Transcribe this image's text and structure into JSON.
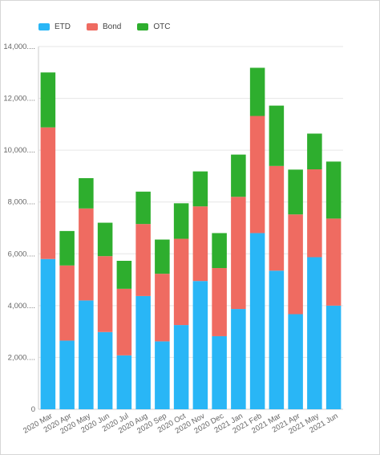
{
  "colors": {
    "ETD": "#29b6f6",
    "Bond": "#ef6b61",
    "OTC": "#2eae2e",
    "grid": "#e6e6e6",
    "axis": "#cccccc"
  },
  "legend": [
    {
      "label": "ETD",
      "color": "#29b6f6"
    },
    {
      "label": "Bond",
      "color": "#ef6b61"
    },
    {
      "label": "OTC",
      "color": "#2eae2e"
    }
  ],
  "chart_data": {
    "type": "bar",
    "stacked": true,
    "categories": [
      "2020 Mar",
      "2020 Apr",
      "2020 May",
      "2020 Jun",
      "2020 Jul",
      "2020 Aug",
      "2020 Sep",
      "2020 Oct",
      "2020 Nov",
      "2020 Dec",
      "2021 Jan",
      "2021 Feb",
      "2021 Mar",
      "2021 Apr",
      "2021 May",
      "2021 Jun"
    ],
    "series": [
      {
        "name": "ETD",
        "values": [
          5800,
          2650,
          4200,
          2980,
          2080,
          4370,
          2620,
          3250,
          4950,
          2820,
          3870,
          6800,
          5350,
          3670,
          5870,
          4000
        ]
      },
      {
        "name": "Bond",
        "values": [
          5080,
          2900,
          3550,
          2930,
          2570,
          2780,
          2610,
          3330,
          2880,
          2630,
          4330,
          4520,
          4040,
          3850,
          3390,
          3360
        ]
      },
      {
        "name": "OTC",
        "values": [
          2120,
          1330,
          1170,
          1290,
          1080,
          1250,
          1320,
          1370,
          1350,
          1350,
          1630,
          1860,
          2330,
          1730,
          1380,
          2200
        ]
      }
    ],
    "yticks": [
      "0",
      "2,000....",
      "4,000....",
      "6,000....",
      "8,000....",
      "10,000....",
      "12,000....",
      "14,000...."
    ],
    "ylim": [
      0,
      14000
    ],
    "grid": true,
    "legend_position": "top-left",
    "title": "",
    "xlabel": "",
    "ylabel": ""
  }
}
